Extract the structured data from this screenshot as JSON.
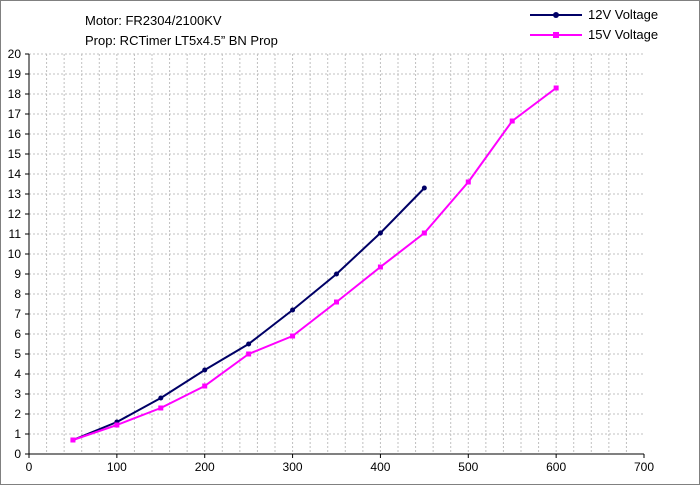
{
  "chart_data": {
    "type": "line",
    "annotations": [
      "Motor: FR2304/2100KV",
      "Prop: RCTimer LT5x4.5” BN Prop"
    ],
    "xlabel": "",
    "ylabel": "",
    "xlim": [
      0,
      700
    ],
    "ylim": [
      0,
      20
    ],
    "x_ticks": [
      "0",
      "100",
      "200",
      "300",
      "400",
      "500",
      "600",
      "700"
    ],
    "y_ticks": [
      "0",
      "1",
      "2",
      "3",
      "4",
      "5",
      "6",
      "7",
      "8",
      "9",
      "10",
      "11",
      "12",
      "13",
      "14",
      "15",
      "16",
      "17",
      "18",
      "19",
      "20"
    ],
    "grid": true,
    "legend_position": "top-right",
    "series": [
      {
        "name": "12V Voltage",
        "color": "#000066",
        "marker": "circle",
        "x": [
          50,
          100,
          150,
          200,
          250,
          300,
          350,
          400,
          450
        ],
        "y": [
          0.7,
          1.6,
          2.8,
          4.2,
          5.5,
          7.2,
          9.0,
          11.05,
          13.3
        ]
      },
      {
        "name": "15V Voltage",
        "color": "#ff00ff",
        "marker": "square",
        "x": [
          50,
          100,
          150,
          200,
          250,
          300,
          350,
          400,
          450,
          500,
          550,
          600
        ],
        "y": [
          0.7,
          1.45,
          2.3,
          3.4,
          5.0,
          5.9,
          7.6,
          9.35,
          11.05,
          13.6,
          16.65,
          18.3
        ]
      }
    ]
  }
}
